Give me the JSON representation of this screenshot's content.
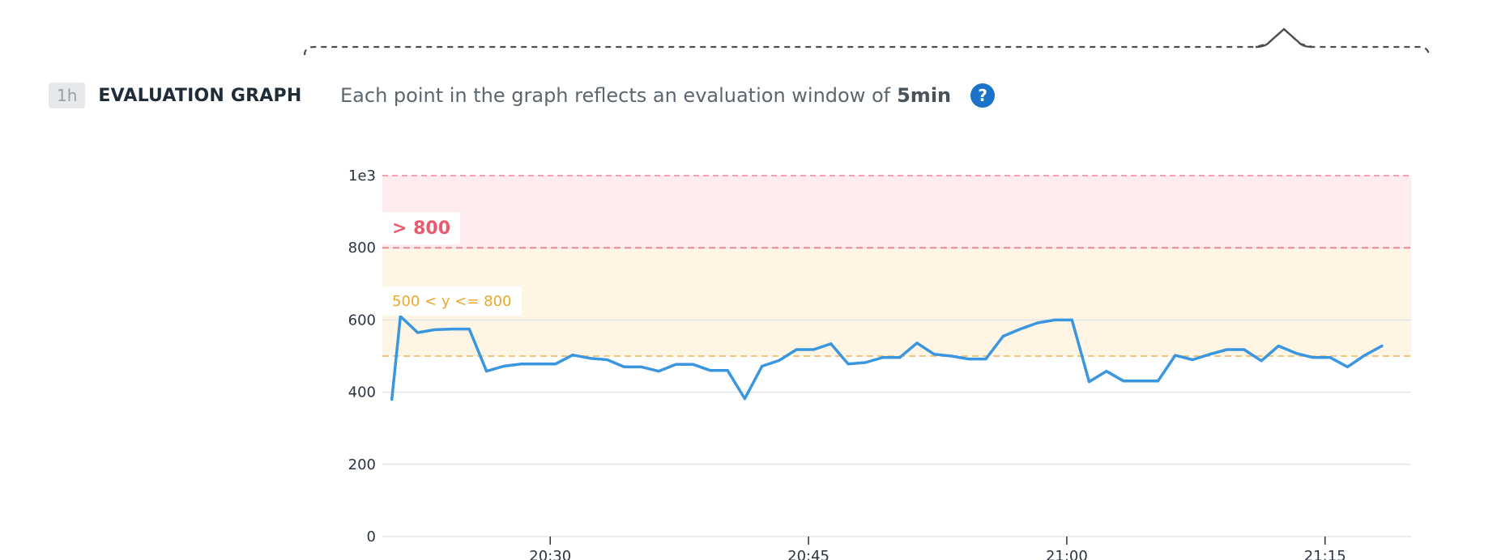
{
  "header": {
    "timeframe_badge": "1h",
    "section_title": "EVALUATION GRAPH",
    "description_prefix": "Each point in the graph reflects an evaluation window of",
    "description_value": "5min",
    "help_icon": "question-circle-icon"
  },
  "colors": {
    "series": "#3a96de",
    "critical_band": "#fdebee",
    "critical_line": "#e98898",
    "critical_text": "#ea5a6e",
    "warning_band": "#fef5e4",
    "warning_line": "#f2c580",
    "warning_text": "#e9a92a",
    "help_icon": "#1a73c9"
  },
  "thresholds": {
    "critical_label": "> 800",
    "warning_label": "500 < y <= 800"
  },
  "chart_data": {
    "type": "line",
    "title": "",
    "xlabel": "",
    "ylabel": "",
    "ylim": [
      0,
      1000
    ],
    "y_ticks": [
      {
        "value": 0,
        "label": "0"
      },
      {
        "value": 200,
        "label": "200"
      },
      {
        "value": 400,
        "label": "400"
      },
      {
        "value": 600,
        "label": "600"
      },
      {
        "value": 800,
        "label": "800"
      },
      {
        "value": 1000,
        "label": "1e3"
      }
    ],
    "x_range_minutes": [
      20.25,
      80
    ],
    "x_ticks": [
      {
        "value": 30,
        "label": "20:30"
      },
      {
        "value": 45,
        "label": "20:45"
      },
      {
        "value": 60,
        "label": "21:00"
      },
      {
        "value": 75,
        "label": "21:15"
      }
    ],
    "critical_threshold": 800,
    "warning_threshold": 500,
    "grid": true,
    "series": [
      {
        "color": "#3a96de",
        "points": [
          [
            20.8,
            380
          ],
          [
            21.3,
            610
          ],
          [
            22.3,
            565
          ],
          [
            23.3,
            573
          ],
          [
            24.3,
            575
          ],
          [
            25.3,
            575
          ],
          [
            26.3,
            458
          ],
          [
            27.3,
            472
          ],
          [
            28.3,
            478
          ],
          [
            29.3,
            478
          ],
          [
            30.3,
            478
          ],
          [
            31.3,
            503
          ],
          [
            32.3,
            494
          ],
          [
            33.3,
            490
          ],
          [
            34.3,
            470
          ],
          [
            35.3,
            470
          ],
          [
            36.3,
            458
          ],
          [
            37.3,
            477
          ],
          [
            38.3,
            477
          ],
          [
            39.3,
            460
          ],
          [
            40.3,
            460
          ],
          [
            41.3,
            382
          ],
          [
            42.3,
            472
          ],
          [
            43.3,
            488
          ],
          [
            44.3,
            518
          ],
          [
            45.3,
            518
          ],
          [
            46.3,
            534
          ],
          [
            47.3,
            478
          ],
          [
            48.3,
            482
          ],
          [
            49.3,
            496
          ],
          [
            50.3,
            496
          ],
          [
            51.3,
            536
          ],
          [
            52.3,
            505
          ],
          [
            53.3,
            500
          ],
          [
            54.3,
            492
          ],
          [
            55.3,
            492
          ],
          [
            56.3,
            555
          ],
          [
            57.3,
            575
          ],
          [
            58.3,
            592
          ],
          [
            59.3,
            600
          ],
          [
            60.3,
            600
          ],
          [
            61.3,
            429
          ],
          [
            62.3,
            458
          ],
          [
            63.3,
            431
          ],
          [
            64.3,
            431
          ],
          [
            65.3,
            431
          ],
          [
            66.3,
            502
          ],
          [
            67.3,
            490
          ],
          [
            68.3,
            505
          ],
          [
            69.3,
            518
          ],
          [
            70.3,
            518
          ],
          [
            71.3,
            487
          ],
          [
            72.3,
            528
          ],
          [
            73.3,
            508
          ],
          [
            74.3,
            496
          ],
          [
            75.3,
            496
          ],
          [
            76.3,
            470
          ],
          [
            77.3,
            502
          ],
          [
            78.3,
            528
          ]
        ]
      }
    ]
  }
}
